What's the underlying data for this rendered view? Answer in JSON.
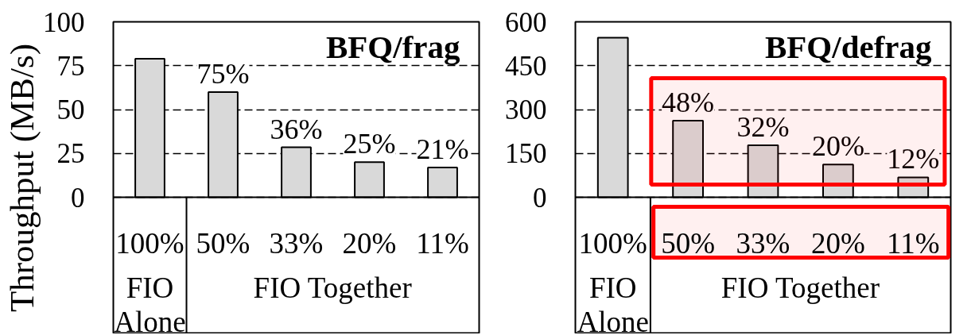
{
  "chart_data": [
    {
      "type": "bar",
      "title": "BFQ/frag",
      "ylabel": "Throughput (MB/s)",
      "categories": [
        "100%",
        "50%",
        "33%",
        "20%",
        "11%"
      ],
      "values": [
        79,
        60,
        28.5,
        20,
        17
      ],
      "color": "#d9d9d9",
      "ylim": [
        0,
        100
      ],
      "yticks": [
        0,
        25,
        50,
        75,
        100
      ],
      "grid": "y",
      "annotations": [
        {
          "text": "75%",
          "x": "50%",
          "y": 60
        },
        {
          "text": "36%",
          "x": "33%",
          "y": 28.5
        },
        {
          "text": "25%",
          "x": "20%",
          "y": 20
        },
        {
          "text": "21%",
          "x": "11%",
          "y": 17
        },
        "FIO Alone",
        "FIO Together"
      ]
    },
    {
      "type": "bar",
      "title": "BFQ/defrag",
      "categories": [
        "100%",
        "50%",
        "33%",
        "20%",
        "11%"
      ],
      "values": [
        546,
        262,
        178,
        112,
        68
      ],
      "color": "#d9d9d9",
      "ylim": [
        0,
        600
      ],
      "yticks": [
        0,
        150,
        300,
        450,
        600
      ],
      "grid": "y",
      "annotations": [
        {
          "text": "48%",
          "x": "50%",
          "y": 262
        },
        {
          "text": "32%",
          "x": "33%",
          "y": 178
        },
        {
          "text": "20%",
          "x": "20%",
          "y": 112
        },
        {
          "text": "12%",
          "x": "11%",
          "y": 68
        },
        "FIO Alone",
        "FIO Together"
      ],
      "bands": [
        {
          "axis": "x",
          "from": "50%",
          "to": "11%",
          "color": "#ff0000"
        }
      ]
    }
  ]
}
